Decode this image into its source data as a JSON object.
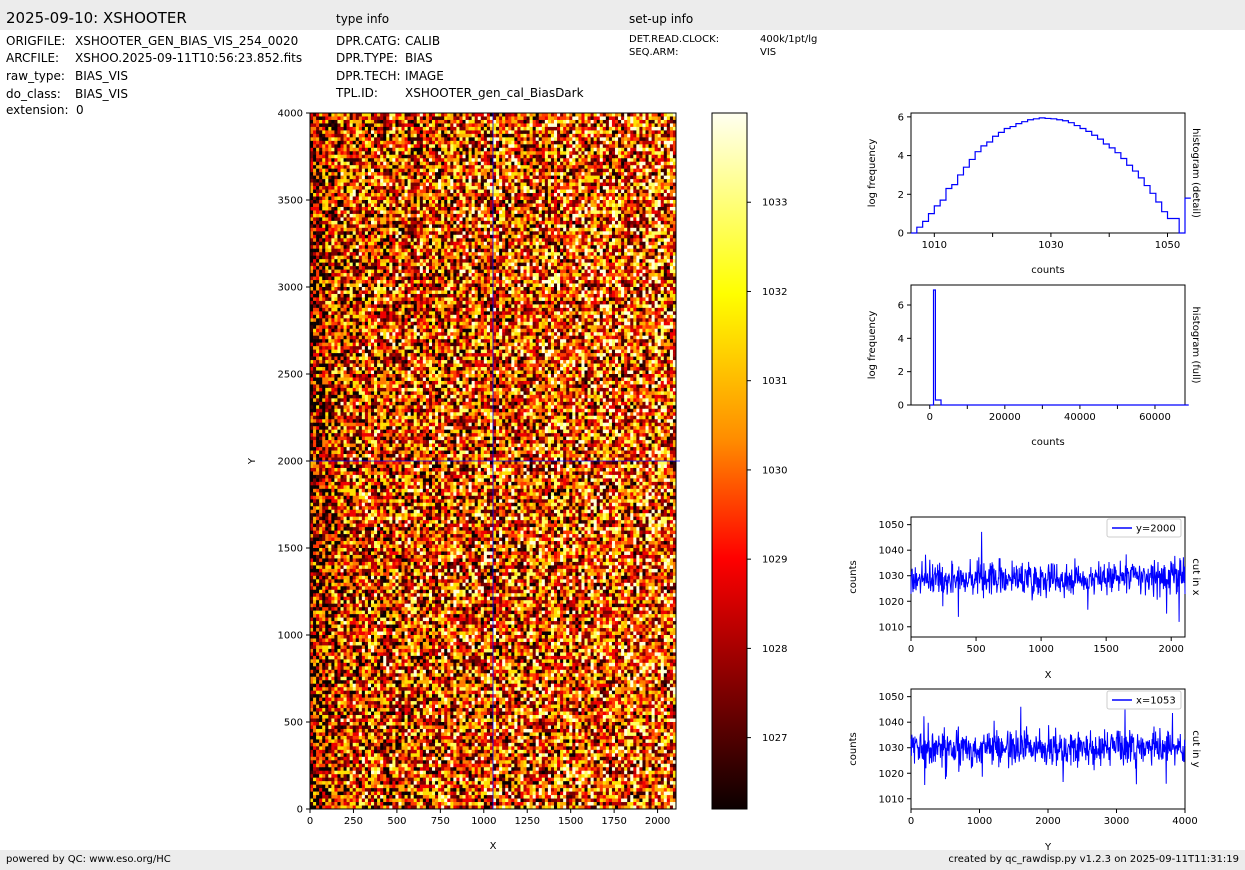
{
  "header": {
    "title": "2025-09-10: XSHOOTER",
    "type_info_title": "type info",
    "setup_info_title": "set-up info"
  },
  "file_info": [
    {
      "key": "ORIGFILE:",
      "value": "XSHOOTER_GEN_BIAS_VIS_254_0020"
    },
    {
      "key": "ARCFILE:",
      "value": "XSHOO.2025-09-11T10:56:23.852.fits"
    },
    {
      "key": "raw_type:",
      "value": "BIAS_VIS"
    },
    {
      "key": "do_class:",
      "value": "BIAS_VIS"
    },
    {
      "key": "extension:",
      "value": "0"
    }
  ],
  "type_info": [
    {
      "key": "DPR.CATG:",
      "value": "CALIB"
    },
    {
      "key": "DPR.TYPE:",
      "value": "BIAS"
    },
    {
      "key": "DPR.TECH:",
      "value": "IMAGE"
    },
    {
      "key": "TPL.ID:",
      "value": "XSHOOTER_gen_cal_BiasDark"
    }
  ],
  "setup_info": [
    {
      "key": "DET.READ.CLOCK:",
      "value": "400k/1pt/lg"
    },
    {
      "key": "SEQ.ARM:",
      "value": "VIS"
    }
  ],
  "footer": {
    "left": "powered by QC: www.eso.org/HC",
    "right": "created by qc_rawdisp.py v1.2.3 on 2025-09-11T11:31:19"
  },
  "colors": {
    "line": "#0000ff",
    "crosshair": "#0000ff",
    "bar": "#ececec"
  },
  "chart_data": [
    {
      "type": "heatmap",
      "name": "image",
      "xlabel": "X",
      "ylabel": "Y",
      "xlim": [
        0,
        2106
      ],
      "ylim": [
        0,
        4000
      ],
      "xticks": [
        0,
        250,
        500,
        750,
        1000,
        1250,
        1500,
        1750,
        2000
      ],
      "yticks": [
        0,
        500,
        1000,
        1500,
        2000,
        2500,
        3000,
        3500,
        4000
      ],
      "crosshair": {
        "x": 1053,
        "y": 2000
      },
      "colormap": "hot",
      "colorbar": {
        "range": [
          1026.2,
          1034.0
        ],
        "ticks": [
          1027,
          1028,
          1029,
          1030,
          1031,
          1032,
          1033
        ]
      }
    },
    {
      "type": "line",
      "name": "histogram (detail)",
      "side_label": "histogram (detail)",
      "xlabel": "counts",
      "ylabel": "log frequency",
      "xlim": [
        1006,
        1053
      ],
      "ylim": [
        0,
        6.2
      ],
      "xticks": [
        1010,
        1030,
        1050
      ],
      "xticks_minor": [
        1020,
        1040
      ],
      "yticks": [
        0,
        2,
        4,
        6
      ],
      "x": [
        1006,
        1007,
        1008,
        1009,
        1010,
        1011,
        1012,
        1013,
        1014,
        1015,
        1016,
        1017,
        1018,
        1019,
        1020,
        1021,
        1022,
        1023,
        1024,
        1025,
        1026,
        1027,
        1028,
        1029,
        1030,
        1031,
        1032,
        1033,
        1034,
        1035,
        1036,
        1037,
        1038,
        1039,
        1040,
        1041,
        1042,
        1043,
        1044,
        1045,
        1046,
        1047,
        1048,
        1049,
        1050,
        1051,
        1052,
        1053
      ],
      "y": [
        0,
        0.3,
        0.6,
        1.0,
        1.4,
        1.7,
        2.3,
        2.5,
        3.0,
        3.4,
        3.8,
        4.2,
        4.5,
        4.7,
        5.0,
        5.2,
        5.4,
        5.5,
        5.65,
        5.75,
        5.85,
        5.9,
        5.95,
        5.92,
        5.9,
        5.85,
        5.8,
        5.7,
        5.55,
        5.4,
        5.25,
        5.05,
        4.85,
        4.6,
        4.4,
        4.15,
        3.85,
        3.5,
        3.2,
        2.85,
        2.45,
        2.05,
        1.6,
        1.1,
        0.75,
        0.75,
        0,
        1.8
      ]
    },
    {
      "type": "line",
      "name": "histogram (full)",
      "side_label": "histogram (full)",
      "xlabel": "counts",
      "ylabel": "log frequency",
      "xlim": [
        -5000,
        68000
      ],
      "ylim": [
        0,
        7.2
      ],
      "xticks": [
        0,
        20000,
        40000,
        60000
      ],
      "xticks_minor": [
        10000,
        30000,
        50000
      ],
      "yticks": [
        0,
        2,
        4,
        6
      ],
      "x": [
        0,
        1000,
        1500,
        3000,
        68000
      ],
      "y": [
        0,
        6.9,
        0.3,
        0,
        0
      ]
    },
    {
      "type": "line",
      "name": "cut in x",
      "side_label": "cut in x",
      "xlabel": "X",
      "ylabel": "counts",
      "xlim": [
        0,
        2106
      ],
      "ylim": [
        1006,
        1053
      ],
      "xticks": [
        0,
        500,
        1000,
        1500,
        2000
      ],
      "yticks": [
        1010,
        1020,
        1030,
        1040,
        1050
      ],
      "series": [
        {
          "name": "y=2000",
          "mean": 1029,
          "spread": 4.2,
          "length": 2106
        }
      ]
    },
    {
      "type": "line",
      "name": "cut in y",
      "side_label": "cut in y",
      "xlabel": "Y",
      "ylabel": "counts",
      "xlim": [
        0,
        4000
      ],
      "ylim": [
        1006,
        1053
      ],
      "xticks": [
        0,
        1000,
        2000,
        3000,
        4000
      ],
      "yticks": [
        1010,
        1020,
        1030,
        1040,
        1050
      ],
      "series": [
        {
          "name": "x=1053",
          "mean": 1030,
          "spread": 4.2,
          "length": 4000
        }
      ]
    }
  ]
}
